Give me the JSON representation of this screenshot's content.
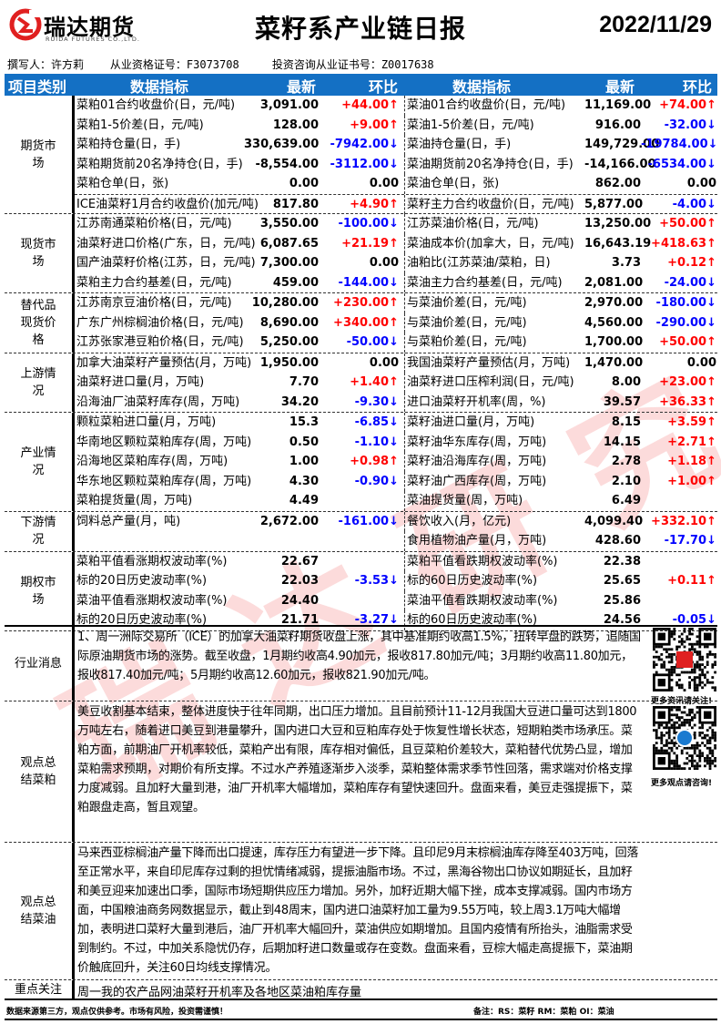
{
  "header": {
    "logo_cn": "瑞达期货",
    "logo_en": "RUIDA FUTURES CO.,LTD.",
    "title": "菜籽系产业链日报",
    "date": "2022/11/29",
    "author": "撰写人：许方莉    从业资格证号：F3073708     投资咨询从业证书号：Z0017638"
  },
  "colors": {
    "header_bg": "#1470c4",
    "up": "#ff0000",
    "down": "#0000ff",
    "brand": "#e02020"
  },
  "table_header": {
    "category": "项目类别",
    "indicator": "数据指标",
    "latest": "最新",
    "change": "环比",
    "indicator2": "数据指标",
    "latest2": "最新",
    "change2": "环比"
  },
  "sections": [
    {
      "category": "期货市场",
      "rows": [
        {
          "ln": "菜粕01合约收盘价(日，元/吨)",
          "lv": "3,091.00",
          "lc": "+44.00↑",
          "ld": "up",
          "rn": "菜油01合约收盘价(日，元/吨)",
          "rv": "11,169.00",
          "rc": "+74.00↑",
          "rd": "up"
        },
        {
          "ln": "菜粕1-5价差(日，元/吨)",
          "lv": "128.00",
          "lc": "+9.00↑",
          "ld": "up",
          "rn": "菜油1-5价差(日，元/吨)",
          "rv": "916.00",
          "rc": "-32.00↓",
          "rd": "dn"
        },
        {
          "ln": "菜粕持仓量(日，手)",
          "lv": "330,639.00",
          "lc": "-7942.00↓",
          "ld": "dn",
          "rn": "菜油持仓量(日，手)",
          "rv": "149,729.00",
          "rc": "-19784.00↓",
          "rd": "dn"
        },
        {
          "ln": "菜粕期货前20名净持仓(日，手)",
          "lv": "-8,554.00",
          "lc": "-3112.00↓",
          "ld": "dn",
          "rn": "菜油期货前20名净持仓(日，手)",
          "rv": "-14,166.00",
          "rc": "-6534.00↓",
          "rd": "dn"
        },
        {
          "ln": "菜粕仓单(日，张)",
          "lv": "0.00",
          "lc": "0.00",
          "ld": "fl",
          "rn": "菜油仓单(日，张)",
          "rv": "862.00",
          "rc": "0.00",
          "rd": "fl"
        },
        {
          "sep": true,
          "ln": "ICE油菜籽1月合约收盘价(加元/吨)",
          "lv": "817.80",
          "lc": "+4.90↑",
          "ld": "up",
          "rn": "菜籽主力合约收盘价(日，元/吨)",
          "rv": "5,877.00",
          "rc": "-4.00↓",
          "rd": "dn"
        }
      ]
    },
    {
      "category": "现货市场",
      "rows": [
        {
          "ln": "江苏南通菜粕价格(日，元/吨)",
          "lv": "3,550.00",
          "lc": "-100.00↓",
          "ld": "dn",
          "rn": "江苏菜油价格(日，元/吨)",
          "rv": "13,250.00",
          "rc": "+50.00↑",
          "rd": "up"
        },
        {
          "ln": "油菜籽进口价格(广东，日，元/吨)",
          "lv": "6,087.65",
          "lc": "+21.19↑",
          "ld": "up",
          "rn": "菜油成本价(加拿大，日，元/吨)",
          "rv": "16,643.19",
          "rc": "+418.63↑",
          "rd": "up"
        },
        {
          "ln": "国产油菜籽价格(江苏，日，元/吨)",
          "lv": "7,300.00",
          "lc": "0.00",
          "ld": "fl",
          "rn": "油粕比(江苏菜油/菜粕，日)",
          "rv": "3.73",
          "rc": "+0.12↑",
          "rd": "up"
        },
        {
          "ln": "菜粕主力合约基差(日，元/吨)",
          "lv": "459.00",
          "lc": "-144.00↓",
          "ld": "dn",
          "rn": "菜油主力合约基差(日，元/吨)",
          "rv": "2,081.00",
          "rc": "-24.00↓",
          "rd": "dn"
        }
      ]
    },
    {
      "category": "替代品现货价格",
      "rows": [
        {
          "ln": "江苏南京豆油价格(日，元/吨)",
          "lv": "10,280.00",
          "lc": "+230.00↑",
          "ld": "up",
          "rn": "与菜油价差(日，元/吨)",
          "rv": "2,970.00",
          "rc": "-180.00↓",
          "rd": "dn"
        },
        {
          "ln": "广东广州棕榈油价格(日，元/吨)",
          "lv": "8,690.00",
          "lc": "+340.00↑",
          "ld": "up",
          "rn": "与菜油价差(日，元/吨)",
          "rv": "4,560.00",
          "rc": "-290.00↓",
          "rd": "dn"
        },
        {
          "ln": "江苏张家港豆粕价格(日，元/吨)",
          "lv": "5,250.00",
          "lc": "-50.00↓",
          "ld": "dn",
          "rn": "与菜粕价差(日，元/吨)",
          "rv": "1,700.00",
          "rc": "+50.00↑",
          "rd": "up"
        }
      ]
    },
    {
      "category": "上游情况",
      "rows": [
        {
          "ln": "加拿大油菜籽产量预估(月，万吨)",
          "lv": "1,950.00",
          "lc": "0.00",
          "ld": "fl",
          "rn": "我国油菜籽产量预估(月，万吨)",
          "rv": "1,470.00",
          "rc": "0.00",
          "rd": "fl"
        },
        {
          "ln": "油菜籽进口量(月，万吨)",
          "lv": "7.70",
          "lc": "+1.40↑",
          "ld": "up",
          "rn": "油菜籽进口压榨利润(日，元/吨)",
          "rv": "8.00",
          "rc": "+23.00↑",
          "rd": "up"
        },
        {
          "ln": "沿海油厂油菜籽库存(周，万吨)",
          "lv": "34.20",
          "lc": "-9.30↓",
          "ld": "dn",
          "rn": "进口油菜籽开机率(周，%)",
          "rv": "39.57",
          "rc": "+36.33↑",
          "rd": "up"
        }
      ]
    },
    {
      "category": "产业情况",
      "rows": [
        {
          "ln": "颗粒菜粕进口量(月，万吨)",
          "lv": "15.3",
          "lc": "-6.85↓",
          "ld": "dn",
          "rn": "菜籽油进口量(月，万吨)",
          "rv": "8.15",
          "rc": "+3.59↑",
          "rd": "up"
        },
        {
          "ln": "华南地区颗粒菜粕库存(周，万吨)",
          "lv": "0.50",
          "lc": "-1.10↓",
          "ld": "dn",
          "rn": "菜籽油华东库存(周，万吨)",
          "rv": "14.15",
          "rc": "+2.71↑",
          "rd": "up"
        },
        {
          "ln": "沿海地区菜粕库存(周，万吨)",
          "lv": "1.00",
          "lc": "+0.98↑",
          "ld": "up",
          "rn": "菜籽油沿海库存(周，万吨)",
          "rv": "2.78",
          "rc": "+1.18↑",
          "rd": "up"
        },
        {
          "ln": "华东地区颗粒菜粕库存(周，万吨)",
          "lv": "4.30",
          "lc": "-0.90↓",
          "ld": "dn",
          "rn": "菜籽油广西库存(周，万吨)",
          "rv": "2.10",
          "rc": "+1.00↑",
          "rd": "up"
        },
        {
          "ln": "菜粕提货量(周，万吨)",
          "lv": "4.49",
          "lc": "",
          "ld": "fl",
          "rn": "菜油提货量(周，万吨)",
          "rv": "6.49",
          "rc": "",
          "rd": "fl"
        }
      ]
    },
    {
      "category": "下游情况",
      "rows": [
        {
          "ln": "饲料总产量(月，吨)",
          "lv": "2,672.00",
          "lc": "-161.00↓",
          "ld": "dn",
          "rn": "餐饮收入(月，亿元)",
          "rv": "4,099.40",
          "rc": "+332.10↑",
          "rd": "up"
        },
        {
          "ln": "",
          "lv": "",
          "lc": "",
          "ld": "fl",
          "rn": "食用植物油产量(月，万吨)",
          "rv": "428.60",
          "rc": "-17.70↓",
          "rd": "dn"
        }
      ]
    },
    {
      "category": "期权市场",
      "rows": [
        {
          "ln": "菜粕平值看涨期权波动率(%)",
          "lv": "22.67",
          "lc": "",
          "ld": "fl",
          "rn": "菜粕平值看跌期权波动率(%)",
          "rv": "22.38",
          "rc": "",
          "rd": "fl"
        },
        {
          "ln": "标的20日历史波动率(%)",
          "lv": "22.03",
          "lc": "-3.53↓",
          "ld": "dn",
          "rn": "标的60日历史波动率(%)",
          "rv": "25.65",
          "rc": "+0.11↑",
          "rd": "up"
        },
        {
          "ln": "菜油平值看涨期权波动率(%)",
          "lv": "24.40",
          "lc": "",
          "ld": "fl",
          "rn": "菜油平值看跌期权波动率(%)",
          "rv": "25.86",
          "rc": "",
          "rd": "fl"
        },
        {
          "ln": "标的20日历史波动率(%)",
          "lv": "21.71",
          "lc": "-3.27↓",
          "ld": "dn",
          "rn": "标的60日历史波动率(%)",
          "rv": "24.56",
          "rc": "-0.05↓",
          "rd": "dn"
        }
      ]
    }
  ],
  "news": {
    "category": "行业消息",
    "text": "1、周一洲际交易所（ICE）的加拿大油菜籽期货收盘上涨，其中基准期约收高1.5%，扭转早盘的跌势，追随国际原油期货市场的涨势。截至收盘，1月期约收高4.90加元，报收817.80加元/吨；3月期约收高11.80加元，报收817.40加元/吨；5月期约收高12.60加元，报收821.90加元/吨。",
    "qr_label": "更多资讯请关注!"
  },
  "meal_view": {
    "category": "观点总结菜粕",
    "text": "美豆收割基本结束，整体进度快于往年同期，出口压力增加。且目前预计11-12月我国大豆进口量可达到1800万吨左右，随着进口美豆到港量攀升，国内进口大豆和豆粕库存处于恢复性增长状态，短期粕类市场承压。菜粕方面，前期油厂开机率较低，菜粕产出有限，库存相对偏低，且豆菜粕价差较大，菜粕替代优势凸显，增加菜粕需求预期，对期价有所支撑。不过水产养殖逐渐步入淡季，菜粕整体需求季节性回落，需求端对价格支撑力度减弱。且加籽大量到港，油厂开机率大幅增加，菜粕库存有望快速回升。盘面来看，美豆走强提振下，菜粕跟盘走高，暂且观望。",
    "qr_label": "更多观点请咨询!"
  },
  "oil_view": {
    "category": "观点总结菜油",
    "text": "马来西亚棕榈油产量下降而出口提速，库存压力有望进一步下降。且印尼9月末棕榈油库存降至403万吨，回落至正常水平，来自印尼库存过剩的担忧情绪减弱，提振油脂市场。不过，黑海谷物出口协议如期延长，且加籽和美豆迎来加速出口季，国际市场短期供应压力增加。另外，加籽近期大幅下挫，成本支撑减弱。国内市场方面，中国粮油商务网数据显示，截止到48周末，国内进口油菜籽加工量为9.55万吨，较上周3.1万吨大幅增加，表明进口菜籽大量到港后，油厂开机率大幅回升，菜油供应如期增加。且国内疫情有所抬头，油脂需求受到制约。不过，中加关系隐忧仍存，后期加籽进口数量或存在变数。盘面来看，豆棕大幅走高提振下，菜油期价触底回升，关注60日均线支撑情况。"
  },
  "focus": {
    "category": "重点关注",
    "text": "周一我的农产品网油菜籽开机率及各地区菜油粕库存量"
  },
  "footer": {
    "disclaimer": "数据来源第三方，观点仅供参考。市场有风险，投资需谨慎！",
    "note": "备注：RS：菜籽   RM：菜粕   OI：菜油"
  },
  "watermark": "瑞达研究"
}
